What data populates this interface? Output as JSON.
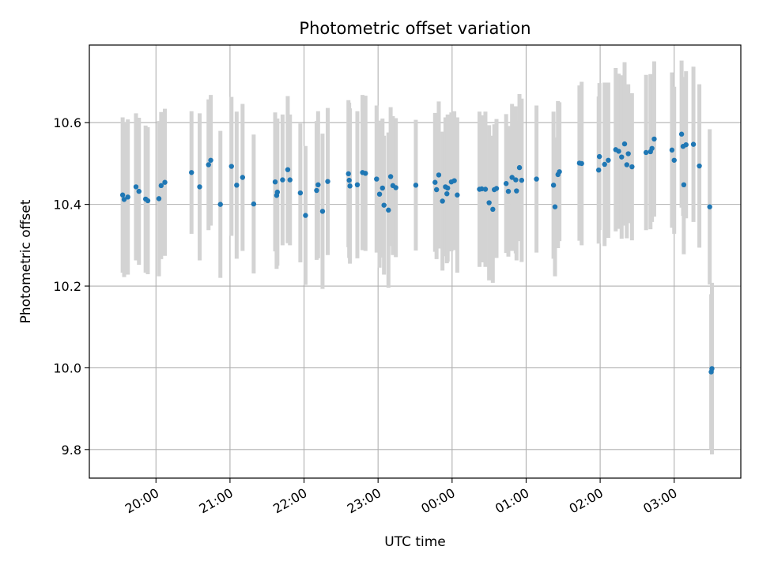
{
  "chart_data": {
    "type": "scatter",
    "title": "Photometric offset variation",
    "xlabel": "UTC time",
    "ylabel": "Photometric offset",
    "x_unit": "hours since 19:00 UTC",
    "xlim": [
      0.1,
      8.9
    ],
    "ylim": [
      9.73,
      10.79
    ],
    "grid": true,
    "legend": "none",
    "yticks": [
      9.8,
      10.0,
      10.2,
      10.4,
      10.6
    ],
    "ytick_labels": [
      "9.8",
      "10.0",
      "10.2",
      "10.4",
      "10.6"
    ],
    "xticks": [
      1,
      2,
      3,
      4,
      5,
      6,
      7,
      8
    ],
    "xtick_labels": [
      "20:00",
      "21:00",
      "22:00",
      "23:00",
      "00:00",
      "01:00",
      "02:00",
      "03:00"
    ],
    "colors": {
      "points": "#1f77b4",
      "errorbars": "#d3d3d3",
      "grid": "#b0b0b0"
    },
    "series": [
      {
        "name": "offset",
        "x": [
          0.55,
          0.57,
          0.62,
          0.73,
          0.77,
          0.86,
          0.89,
          1.04,
          1.07,
          1.12,
          1.48,
          1.59,
          1.71,
          1.74,
          1.87,
          2.02,
          2.09,
          2.17,
          2.32,
          2.61,
          2.63,
          2.64,
          2.71,
          2.78,
          2.81,
          2.95,
          3.02,
          3.17,
          3.19,
          3.25,
          3.32,
          3.6,
          3.61,
          3.62,
          3.72,
          3.79,
          3.83,
          3.98,
          4.02,
          4.06,
          4.08,
          4.14,
          4.17,
          4.2,
          4.24,
          4.51,
          4.77,
          4.79,
          4.82,
          4.87,
          4.91,
          4.93,
          4.94,
          4.99,
          5.03,
          5.07,
          5.37,
          5.4,
          5.45,
          5.5,
          5.55,
          5.57,
          5.6,
          5.73,
          5.76,
          5.81,
          5.86,
          5.87,
          5.91,
          5.94,
          6.14,
          6.37,
          6.39,
          6.43,
          6.45,
          6.72,
          6.75,
          6.98,
          6.99,
          7.06,
          7.11,
          7.21,
          7.25,
          7.29,
          7.33,
          7.36,
          7.38,
          7.43,
          7.62,
          7.68,
          7.7,
          7.73,
          7.97,
          8.0,
          8.1,
          8.12,
          8.13,
          8.16,
          8.26,
          8.34,
          8.48,
          8.5,
          8.51
        ],
        "y": [
          10.423,
          10.412,
          10.418,
          10.443,
          10.432,
          10.413,
          10.409,
          10.414,
          10.446,
          10.454,
          10.478,
          10.443,
          10.497,
          10.508,
          10.4,
          10.493,
          10.447,
          10.466,
          10.401,
          10.455,
          10.422,
          10.43,
          10.46,
          10.485,
          10.46,
          10.428,
          10.373,
          10.434,
          10.448,
          10.383,
          10.456,
          10.475,
          10.459,
          10.445,
          10.448,
          10.478,
          10.476,
          10.462,
          10.425,
          10.44,
          10.398,
          10.386,
          10.468,
          10.446,
          10.441,
          10.447,
          10.454,
          10.436,
          10.472,
          10.408,
          10.443,
          10.426,
          10.44,
          10.455,
          10.458,
          10.423,
          10.437,
          10.438,
          10.437,
          10.404,
          10.388,
          10.436,
          10.439,
          10.451,
          10.432,
          10.466,
          10.46,
          10.433,
          10.49,
          10.459,
          10.462,
          10.447,
          10.394,
          10.473,
          10.48,
          10.501,
          10.5,
          10.484,
          10.517,
          10.498,
          10.508,
          10.534,
          10.53,
          10.516,
          10.548,
          10.497,
          10.524,
          10.492,
          10.527,
          10.529,
          10.537,
          10.56,
          10.533,
          10.508,
          10.572,
          10.542,
          10.448,
          10.546,
          10.547,
          10.494,
          10.394,
          9.99,
          9.998
        ],
        "yerr": [
          0.19,
          0.19,
          0.19,
          0.18,
          0.18,
          0.18,
          0.18,
          0.19,
          0.18,
          0.18,
          0.15,
          0.18,
          0.16,
          0.16,
          0.18,
          0.17,
          0.18,
          0.18,
          0.17,
          0.17,
          0.18,
          0.18,
          0.16,
          0.18,
          0.16,
          0.17,
          0.17,
          0.17,
          0.18,
          0.19,
          0.18,
          0.18,
          0.19,
          0.19,
          0.18,
          0.19,
          0.19,
          0.18,
          0.18,
          0.17,
          0.17,
          0.19,
          0.17,
          0.17,
          0.17,
          0.16,
          0.17,
          0.17,
          0.18,
          0.17,
          0.17,
          0.17,
          0.18,
          0.17,
          0.17,
          0.19,
          0.19,
          0.18,
          0.19,
          0.19,
          0.18,
          0.16,
          0.17,
          0.17,
          0.16,
          0.18,
          0.18,
          0.17,
          0.18,
          0.2,
          0.18,
          0.18,
          0.17,
          0.18,
          0.17,
          0.19,
          0.2,
          0.18,
          0.18,
          0.2,
          0.19,
          0.2,
          0.19,
          0.2,
          0.2,
          0.18,
          0.17,
          0.18,
          0.19,
          0.19,
          0.18,
          0.19,
          0.19,
          0.18,
          0.18,
          0.17,
          0.17,
          0.18,
          0.19,
          0.2,
          0.19,
          0.19,
          0.21
        ]
      }
    ]
  }
}
